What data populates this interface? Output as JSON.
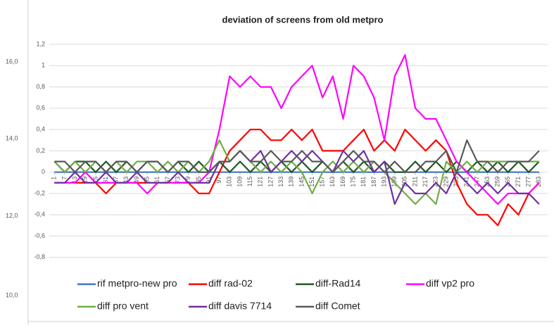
{
  "side_panel": {
    "labels": [
      "16,0",
      "14,0",
      "12,0",
      "10,0"
    ]
  },
  "chart_data": {
    "type": "line",
    "title": "deviation of screens from old metpro",
    "x": [
      1,
      7,
      13,
      19,
      25,
      31,
      37,
      43,
      49,
      55,
      61,
      67,
      73,
      79,
      85,
      91,
      97,
      103,
      109,
      115,
      121,
      127,
      133,
      139,
      145,
      151,
      157,
      163,
      169,
      175,
      181,
      187,
      193,
      199,
      205,
      211,
      217,
      223,
      229,
      235,
      241,
      247,
      253,
      259,
      265,
      271,
      277,
      283
    ],
    "xlim": [
      -2,
      288
    ],
    "xticks": [
      1,
      7,
      13,
      19,
      25,
      31,
      37,
      43,
      49,
      55,
      61,
      67,
      73,
      79,
      85,
      91,
      97,
      103,
      109,
      115,
      121,
      127,
      133,
      139,
      145,
      151,
      157,
      163,
      169,
      175,
      181,
      187,
      193,
      199,
      205,
      211,
      217,
      223,
      229,
      235,
      241,
      247,
      253,
      259,
      265,
      271,
      277,
      283
    ],
    "ylim": [
      -0.9,
      1.2
    ],
    "yticks": [
      {
        "value": -0.8,
        "label": "-0,8"
      },
      {
        "value": -0.6,
        "label": "-0,6"
      },
      {
        "value": -0.4,
        "label": "-0,4"
      },
      {
        "value": -0.2,
        "label": "-0,2"
      },
      0,
      {
        "value": 0.2,
        "label": "0,2"
      },
      {
        "value": 0.4,
        "label": "0,4"
      },
      {
        "value": 0.6,
        "label": "0,6"
      },
      {
        "value": 0.8,
        "label": "0,8"
      },
      1,
      {
        "value": 1.2,
        "label": "1,2"
      }
    ],
    "grid": true,
    "legend": "bottom",
    "series": [
      {
        "name": "rif metpro-new pro",
        "color": "#4472c4",
        "values": [
          0,
          0,
          0,
          0,
          0,
          0,
          0,
          0,
          0,
          0,
          0,
          0,
          0,
          0,
          0,
          0,
          0,
          0,
          0,
          0,
          0,
          0,
          0,
          0,
          0,
          0,
          0,
          0,
          0,
          0,
          0,
          0,
          0,
          0,
          0,
          0,
          0,
          0,
          0,
          0,
          0,
          0,
          0,
          0,
          0,
          0,
          0,
          0
        ]
      },
      {
        "name": "diff rad-02",
        "color": "#ff0000",
        "values": [
          -0.1,
          -0.1,
          -0.1,
          -0.1,
          -0.1,
          -0.2,
          -0.1,
          -0.1,
          -0.1,
          -0.1,
          -0.1,
          -0.1,
          -0.1,
          -0.1,
          -0.2,
          -0.2,
          0,
          0.2,
          0.3,
          0.4,
          0.4,
          0.3,
          0.3,
          0.4,
          0.3,
          0.4,
          0.2,
          0.2,
          0.2,
          0.3,
          0.4,
          0.2,
          0.3,
          0.2,
          0.4,
          0.3,
          0.2,
          0.3,
          0.2,
          -0.1,
          -0.3,
          -0.4,
          -0.4,
          -0.5,
          -0.3,
          -0.4,
          -0.2,
          -0.1
        ]
      },
      {
        "name": "diff-Rad14",
        "color": "#1e5a1e",
        "values": [
          0.1,
          0,
          0.1,
          0.1,
          0,
          0.1,
          0,
          0.1,
          0,
          0.1,
          0.1,
          0,
          0.1,
          0,
          0.1,
          0,
          0.1,
          0,
          0.1,
          0,
          0.1,
          0,
          0.1,
          0,
          0.1,
          0,
          0.1,
          0,
          0.1,
          0,
          0.1,
          0,
          0.1,
          0,
          0,
          0.1,
          0,
          0.1,
          0,
          0.1,
          0,
          0.1,
          0,
          0.1,
          0,
          0.1,
          0,
          0.1
        ]
      },
      {
        "name": "diff vp2 pro",
        "color": "#ff00ff",
        "values": [
          -0.1,
          -0.1,
          -0.1,
          0,
          -0.1,
          -0.1,
          -0.1,
          -0.1,
          -0.1,
          -0.2,
          -0.1,
          -0.1,
          -0.1,
          -0.1,
          -0.1,
          0,
          0.4,
          0.9,
          0.8,
          0.9,
          0.8,
          0.8,
          0.6,
          0.8,
          0.9,
          1,
          0.7,
          0.9,
          0.5,
          1,
          0.9,
          0.7,
          0.3,
          0.9,
          1.1,
          0.6,
          0.5,
          0.5,
          0.3,
          0.1,
          0,
          -0.1,
          -0.2,
          -0.3,
          -0.2,
          -0.2,
          -0.2,
          -0.1
        ]
      },
      {
        "name": "diff pro vent",
        "color": "#70ad47",
        "values": [
          0.1,
          0,
          0.1,
          0,
          0.1,
          0,
          0.1,
          0,
          0.1,
          0.1,
          0,
          0.1,
          0,
          0.1,
          0,
          0.1,
          0.3,
          0.1,
          0.2,
          0.1,
          0,
          0.1,
          0,
          0.1,
          0,
          -0.2,
          0,
          0.1,
          0,
          0.1,
          0,
          0.1,
          0,
          -0.1,
          -0.2,
          -0.3,
          -0.2,
          -0.3,
          0.1,
          0,
          0.1,
          0,
          0.1,
          0.1,
          0.1,
          0.1,
          0.1,
          0.1
        ]
      },
      {
        "name": "diff davis 7714",
        "color": "#7030a0",
        "values": [
          -0.1,
          -0.1,
          0,
          -0.1,
          -0.1,
          0,
          -0.1,
          -0.1,
          0,
          -0.1,
          -0.1,
          -0.1,
          0,
          -0.1,
          -0.1,
          -0.1,
          0.1,
          0.1,
          0.2,
          0.1,
          0.2,
          0,
          0.1,
          0.2,
          0.1,
          0.2,
          0.1,
          0,
          0.2,
          0.1,
          0.2,
          0,
          0.1,
          -0.3,
          -0.1,
          -0.2,
          -0.2,
          -0.1,
          -0.2,
          0,
          -0.1,
          -0.2,
          -0.1,
          -0.2,
          -0.1,
          -0.2,
          -0.2,
          -0.3
        ]
      },
      {
        "name": "diff Comet",
        "color": "#595959",
        "values": [
          0.1,
          0.1,
          0,
          0.1,
          0.1,
          0,
          0.1,
          0.1,
          0,
          0.1,
          0.1,
          0,
          0.1,
          0.1,
          0,
          0,
          0.1,
          0.1,
          0.2,
          0.1,
          0.1,
          0.2,
          0.1,
          0.1,
          0.2,
          0.1,
          0.1,
          0,
          0.1,
          0.2,
          0.1,
          0.1,
          0,
          0.1,
          0,
          0,
          0.1,
          0.1,
          0.2,
          0,
          0.3,
          0.1,
          0.1,
          0,
          0.1,
          0.1,
          0.1,
          0.2
        ]
      }
    ]
  }
}
